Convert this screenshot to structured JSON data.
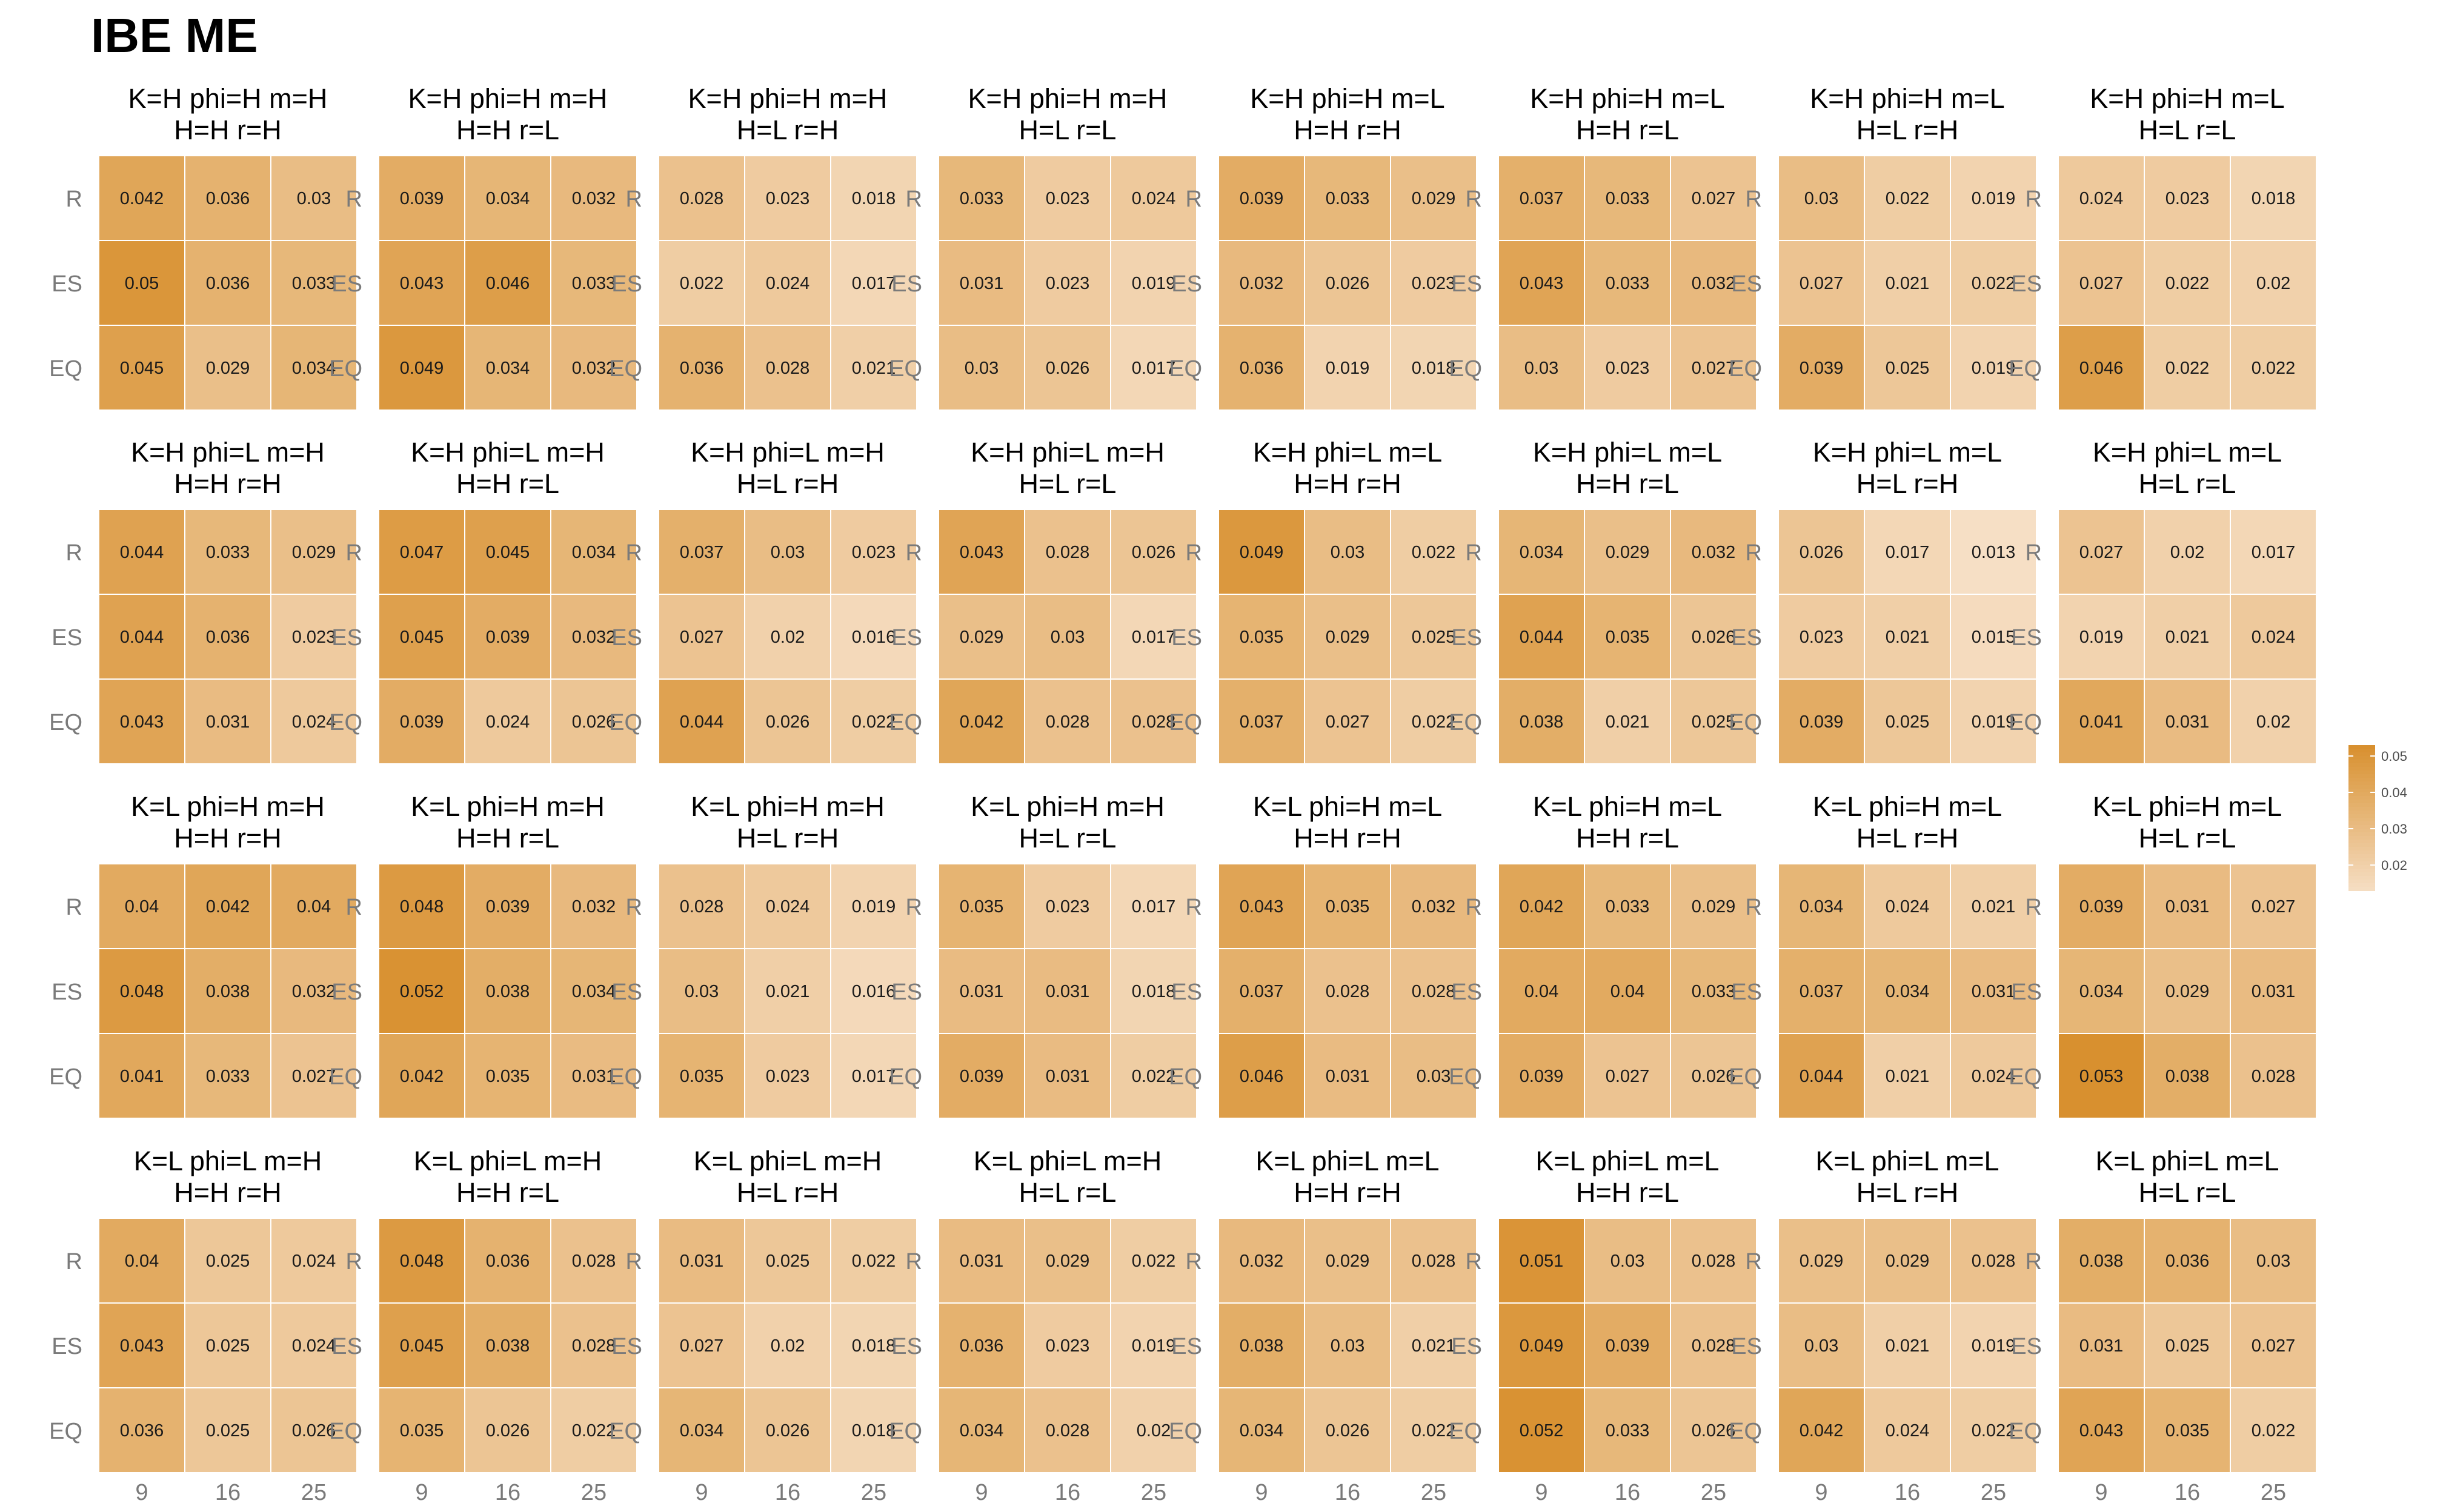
{
  "chart_data": {
    "type": "heatmap",
    "title": "IBE ME",
    "x_categories": [
      "9",
      "16",
      "25"
    ],
    "y_categories": [
      "R",
      "ES",
      "EQ"
    ],
    "color_range": [
      0.013,
      0.053
    ],
    "color_low": "#f6dfc5",
    "color_high": "#d8902f",
    "legend": {
      "position": "right",
      "ticks": [
        "0.05",
        "0.04",
        "0.03",
        "0.02"
      ],
      "tick_values": [
        0.05,
        0.04,
        0.03,
        0.02
      ]
    },
    "panels": [
      {
        "line1": "K=H phi=H m=H",
        "line2": "H=H r=H",
        "values": [
          [
            0.042,
            0.036,
            0.03
          ],
          [
            0.05,
            0.036,
            0.033
          ],
          [
            0.045,
            0.029,
            0.034
          ]
        ]
      },
      {
        "line1": "K=H phi=H m=H",
        "line2": "H=H r=L",
        "values": [
          [
            0.039,
            0.034,
            0.032
          ],
          [
            0.043,
            0.046,
            0.033
          ],
          [
            0.049,
            0.034,
            0.032
          ]
        ]
      },
      {
        "line1": "K=H phi=H m=H",
        "line2": "H=L r=H",
        "values": [
          [
            0.028,
            0.023,
            0.018
          ],
          [
            0.022,
            0.024,
            0.017
          ],
          [
            0.036,
            0.028,
            0.021
          ]
        ]
      },
      {
        "line1": "K=H phi=H m=H",
        "line2": "H=L r=L",
        "values": [
          [
            0.033,
            0.023,
            0.024
          ],
          [
            0.031,
            0.023,
            0.019
          ],
          [
            0.03,
            0.026,
            0.017
          ]
        ]
      },
      {
        "line1": "K=H phi=H m=L",
        "line2": "H=H r=H",
        "values": [
          [
            0.039,
            0.033,
            0.029
          ],
          [
            0.032,
            0.026,
            0.023
          ],
          [
            0.036,
            0.019,
            0.018
          ]
        ]
      },
      {
        "line1": "K=H phi=H m=L",
        "line2": "H=H r=L",
        "values": [
          [
            0.037,
            0.033,
            0.027
          ],
          [
            0.043,
            0.033,
            0.032
          ],
          [
            0.03,
            0.023,
            0.027
          ]
        ]
      },
      {
        "line1": "K=H phi=H m=L",
        "line2": "H=L r=H",
        "values": [
          [
            0.03,
            0.022,
            0.019
          ],
          [
            0.027,
            0.021,
            0.022
          ],
          [
            0.039,
            0.025,
            0.019
          ]
        ]
      },
      {
        "line1": "K=H phi=H m=L",
        "line2": "H=L r=L",
        "values": [
          [
            0.024,
            0.023,
            0.018
          ],
          [
            0.027,
            0.022,
            0.02
          ],
          [
            0.046,
            0.022,
            0.022
          ]
        ]
      },
      {
        "line1": "K=H phi=L m=H",
        "line2": "H=H r=H",
        "values": [
          [
            0.044,
            0.033,
            0.029
          ],
          [
            0.044,
            0.036,
            0.023
          ],
          [
            0.043,
            0.031,
            0.024
          ]
        ]
      },
      {
        "line1": "K=H phi=L m=H",
        "line2": "H=H r=L",
        "values": [
          [
            0.047,
            0.045,
            0.034
          ],
          [
            0.045,
            0.039,
            0.032
          ],
          [
            0.039,
            0.024,
            0.026
          ]
        ]
      },
      {
        "line1": "K=H phi=L m=H",
        "line2": "H=L r=H",
        "values": [
          [
            0.037,
            0.03,
            0.023
          ],
          [
            0.027,
            0.02,
            0.016
          ],
          [
            0.044,
            0.026,
            0.022
          ]
        ]
      },
      {
        "line1": "K=H phi=L m=H",
        "line2": "H=L r=L",
        "values": [
          [
            0.043,
            0.028,
            0.026
          ],
          [
            0.029,
            0.03,
            0.017
          ],
          [
            0.042,
            0.028,
            0.028
          ]
        ]
      },
      {
        "line1": "K=H phi=L m=L",
        "line2": "H=H r=H",
        "values": [
          [
            0.049,
            0.03,
            0.022
          ],
          [
            0.035,
            0.029,
            0.025
          ],
          [
            0.037,
            0.027,
            0.022
          ]
        ]
      },
      {
        "line1": "K=H phi=L m=L",
        "line2": "H=H r=L",
        "values": [
          [
            0.034,
            0.029,
            0.032
          ],
          [
            0.044,
            0.035,
            0.026
          ],
          [
            0.038,
            0.021,
            0.025
          ]
        ]
      },
      {
        "line1": "K=H phi=L m=L",
        "line2": "H=L r=H",
        "values": [
          [
            0.026,
            0.017,
            0.013
          ],
          [
            0.023,
            0.021,
            0.015
          ],
          [
            0.039,
            0.025,
            0.019
          ]
        ]
      },
      {
        "line1": "K=H phi=L m=L",
        "line2": "H=L r=L",
        "values": [
          [
            0.027,
            0.02,
            0.017
          ],
          [
            0.019,
            0.021,
            0.024
          ],
          [
            0.041,
            0.031,
            0.02
          ]
        ]
      },
      {
        "line1": "K=L phi=H m=H",
        "line2": "H=H r=H",
        "values": [
          [
            0.04,
            0.042,
            0.04
          ],
          [
            0.048,
            0.038,
            0.032
          ],
          [
            0.041,
            0.033,
            0.027
          ]
        ]
      },
      {
        "line1": "K=L phi=H m=H",
        "line2": "H=H r=L",
        "values": [
          [
            0.048,
            0.039,
            0.032
          ],
          [
            0.052,
            0.038,
            0.034
          ],
          [
            0.042,
            0.035,
            0.031
          ]
        ]
      },
      {
        "line1": "K=L phi=H m=H",
        "line2": "H=L r=H",
        "values": [
          [
            0.028,
            0.024,
            0.019
          ],
          [
            0.03,
            0.021,
            0.016
          ],
          [
            0.035,
            0.023,
            0.017
          ]
        ]
      },
      {
        "line1": "K=L phi=H m=H",
        "line2": "H=L r=L",
        "values": [
          [
            0.035,
            0.023,
            0.017
          ],
          [
            0.031,
            0.031,
            0.018
          ],
          [
            0.039,
            0.031,
            0.022
          ]
        ]
      },
      {
        "line1": "K=L phi=H m=L",
        "line2": "H=H r=H",
        "values": [
          [
            0.043,
            0.035,
            0.032
          ],
          [
            0.037,
            0.028,
            0.028
          ],
          [
            0.046,
            0.031,
            0.03
          ]
        ]
      },
      {
        "line1": "K=L phi=H m=L",
        "line2": "H=H r=L",
        "values": [
          [
            0.042,
            0.033,
            0.029
          ],
          [
            0.04,
            0.04,
            0.033
          ],
          [
            0.039,
            0.027,
            0.026
          ]
        ]
      },
      {
        "line1": "K=L phi=H m=L",
        "line2": "H=L r=H",
        "values": [
          [
            0.034,
            0.024,
            0.021
          ],
          [
            0.037,
            0.034,
            0.031
          ],
          [
            0.044,
            0.021,
            0.024
          ]
        ]
      },
      {
        "line1": "K=L phi=H m=L",
        "line2": "H=L r=L",
        "values": [
          [
            0.039,
            0.031,
            0.027
          ],
          [
            0.034,
            0.029,
            0.031
          ],
          [
            0.053,
            0.038,
            0.028
          ]
        ]
      },
      {
        "line1": "K=L phi=L m=H",
        "line2": "H=H r=H",
        "values": [
          [
            0.04,
            0.025,
            0.024
          ],
          [
            0.043,
            0.025,
            0.024
          ],
          [
            0.036,
            0.025,
            0.026
          ]
        ]
      },
      {
        "line1": "K=L phi=L m=H",
        "line2": "H=H r=L",
        "values": [
          [
            0.048,
            0.036,
            0.028
          ],
          [
            0.045,
            0.038,
            0.028
          ],
          [
            0.035,
            0.026,
            0.022
          ]
        ]
      },
      {
        "line1": "K=L phi=L m=H",
        "line2": "H=L r=H",
        "values": [
          [
            0.031,
            0.025,
            0.022
          ],
          [
            0.027,
            0.02,
            0.018
          ],
          [
            0.034,
            0.026,
            0.018
          ]
        ]
      },
      {
        "line1": "K=L phi=L m=H",
        "line2": "H=L r=L",
        "values": [
          [
            0.031,
            0.029,
            0.022
          ],
          [
            0.036,
            0.023,
            0.019
          ],
          [
            0.034,
            0.028,
            0.02
          ]
        ]
      },
      {
        "line1": "K=L phi=L m=L",
        "line2": "H=H r=H",
        "values": [
          [
            0.032,
            0.029,
            0.028
          ],
          [
            0.038,
            0.03,
            0.021
          ],
          [
            0.034,
            0.026,
            0.022
          ]
        ]
      },
      {
        "line1": "K=L phi=L m=L",
        "line2": "H=H r=L",
        "values": [
          [
            0.051,
            0.03,
            0.028
          ],
          [
            0.049,
            0.039,
            0.028
          ],
          [
            0.052,
            0.033,
            0.026
          ]
        ]
      },
      {
        "line1": "K=L phi=L m=L",
        "line2": "H=L r=H",
        "values": [
          [
            0.029,
            0.029,
            0.028
          ],
          [
            0.03,
            0.021,
            0.019
          ],
          [
            0.042,
            0.024,
            0.022
          ]
        ]
      },
      {
        "line1": "K=L phi=L m=L",
        "line2": "H=L r=L",
        "values": [
          [
            0.038,
            0.036,
            0.03
          ],
          [
            0.031,
            0.025,
            0.027
          ],
          [
            0.043,
            0.035,
            0.022
          ]
        ]
      }
    ]
  }
}
